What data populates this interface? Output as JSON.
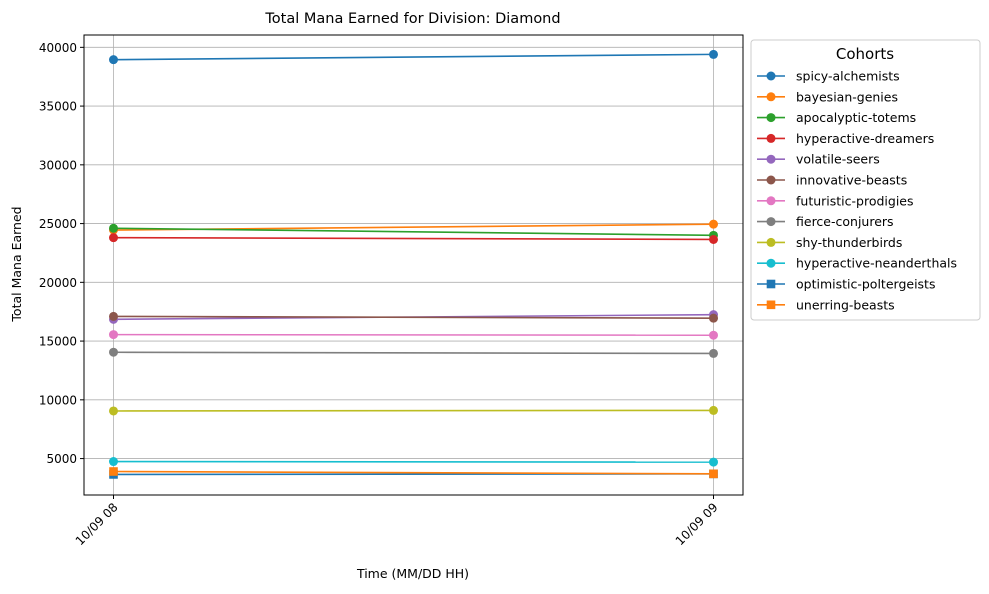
{
  "chart_data": {
    "type": "line",
    "title": "Total Mana Earned for Division: Diamond",
    "xlabel": "Time (MM/DD HH)",
    "ylabel": "Total Mana Earned",
    "x": [
      "10/09 08",
      "10/09 09"
    ],
    "ylim": [
      1900,
      41050
    ],
    "yticks": [
      5000,
      10000,
      15000,
      20000,
      25000,
      30000,
      35000,
      40000
    ],
    "grid": true,
    "legend": {
      "title": "Cohorts",
      "placement": "outside-right"
    },
    "series": [
      {
        "name": "spicy-alchemists",
        "values": [
          38950,
          39400
        ],
        "color": "#1f77b4",
        "marker": "circle"
      },
      {
        "name": "bayesian-genies",
        "values": [
          24450,
          24950
        ],
        "color": "#ff7f0e",
        "marker": "circle"
      },
      {
        "name": "apocalyptic-totems",
        "values": [
          24600,
          24000
        ],
        "color": "#2ca02c",
        "marker": "circle"
      },
      {
        "name": "hyperactive-dreamers",
        "values": [
          23800,
          23650
        ],
        "color": "#d62728",
        "marker": "circle"
      },
      {
        "name": "volatile-seers",
        "values": [
          16850,
          17250
        ],
        "color": "#9467bd",
        "marker": "circle"
      },
      {
        "name": "innovative-beasts",
        "values": [
          17100,
          16950
        ],
        "color": "#8c564b",
        "marker": "circle"
      },
      {
        "name": "futuristic-prodigies",
        "values": [
          15550,
          15500
        ],
        "color": "#e377c2",
        "marker": "circle"
      },
      {
        "name": "fierce-conjurers",
        "values": [
          14050,
          13950
        ],
        "color": "#7f7f7f",
        "marker": "circle"
      },
      {
        "name": "shy-thunderbirds",
        "values": [
          9050,
          9100
        ],
        "color": "#bcbd22",
        "marker": "circle"
      },
      {
        "name": "hyperactive-neanderthals",
        "values": [
          4750,
          4700
        ],
        "color": "#17becf",
        "marker": "circle"
      },
      {
        "name": "optimistic-poltergeists",
        "values": [
          3650,
          3700
        ],
        "color": "#1f77b4",
        "marker": "square"
      },
      {
        "name": "unerring-beasts",
        "values": [
          3900,
          3700
        ],
        "color": "#ff7f0e",
        "marker": "square"
      }
    ]
  }
}
